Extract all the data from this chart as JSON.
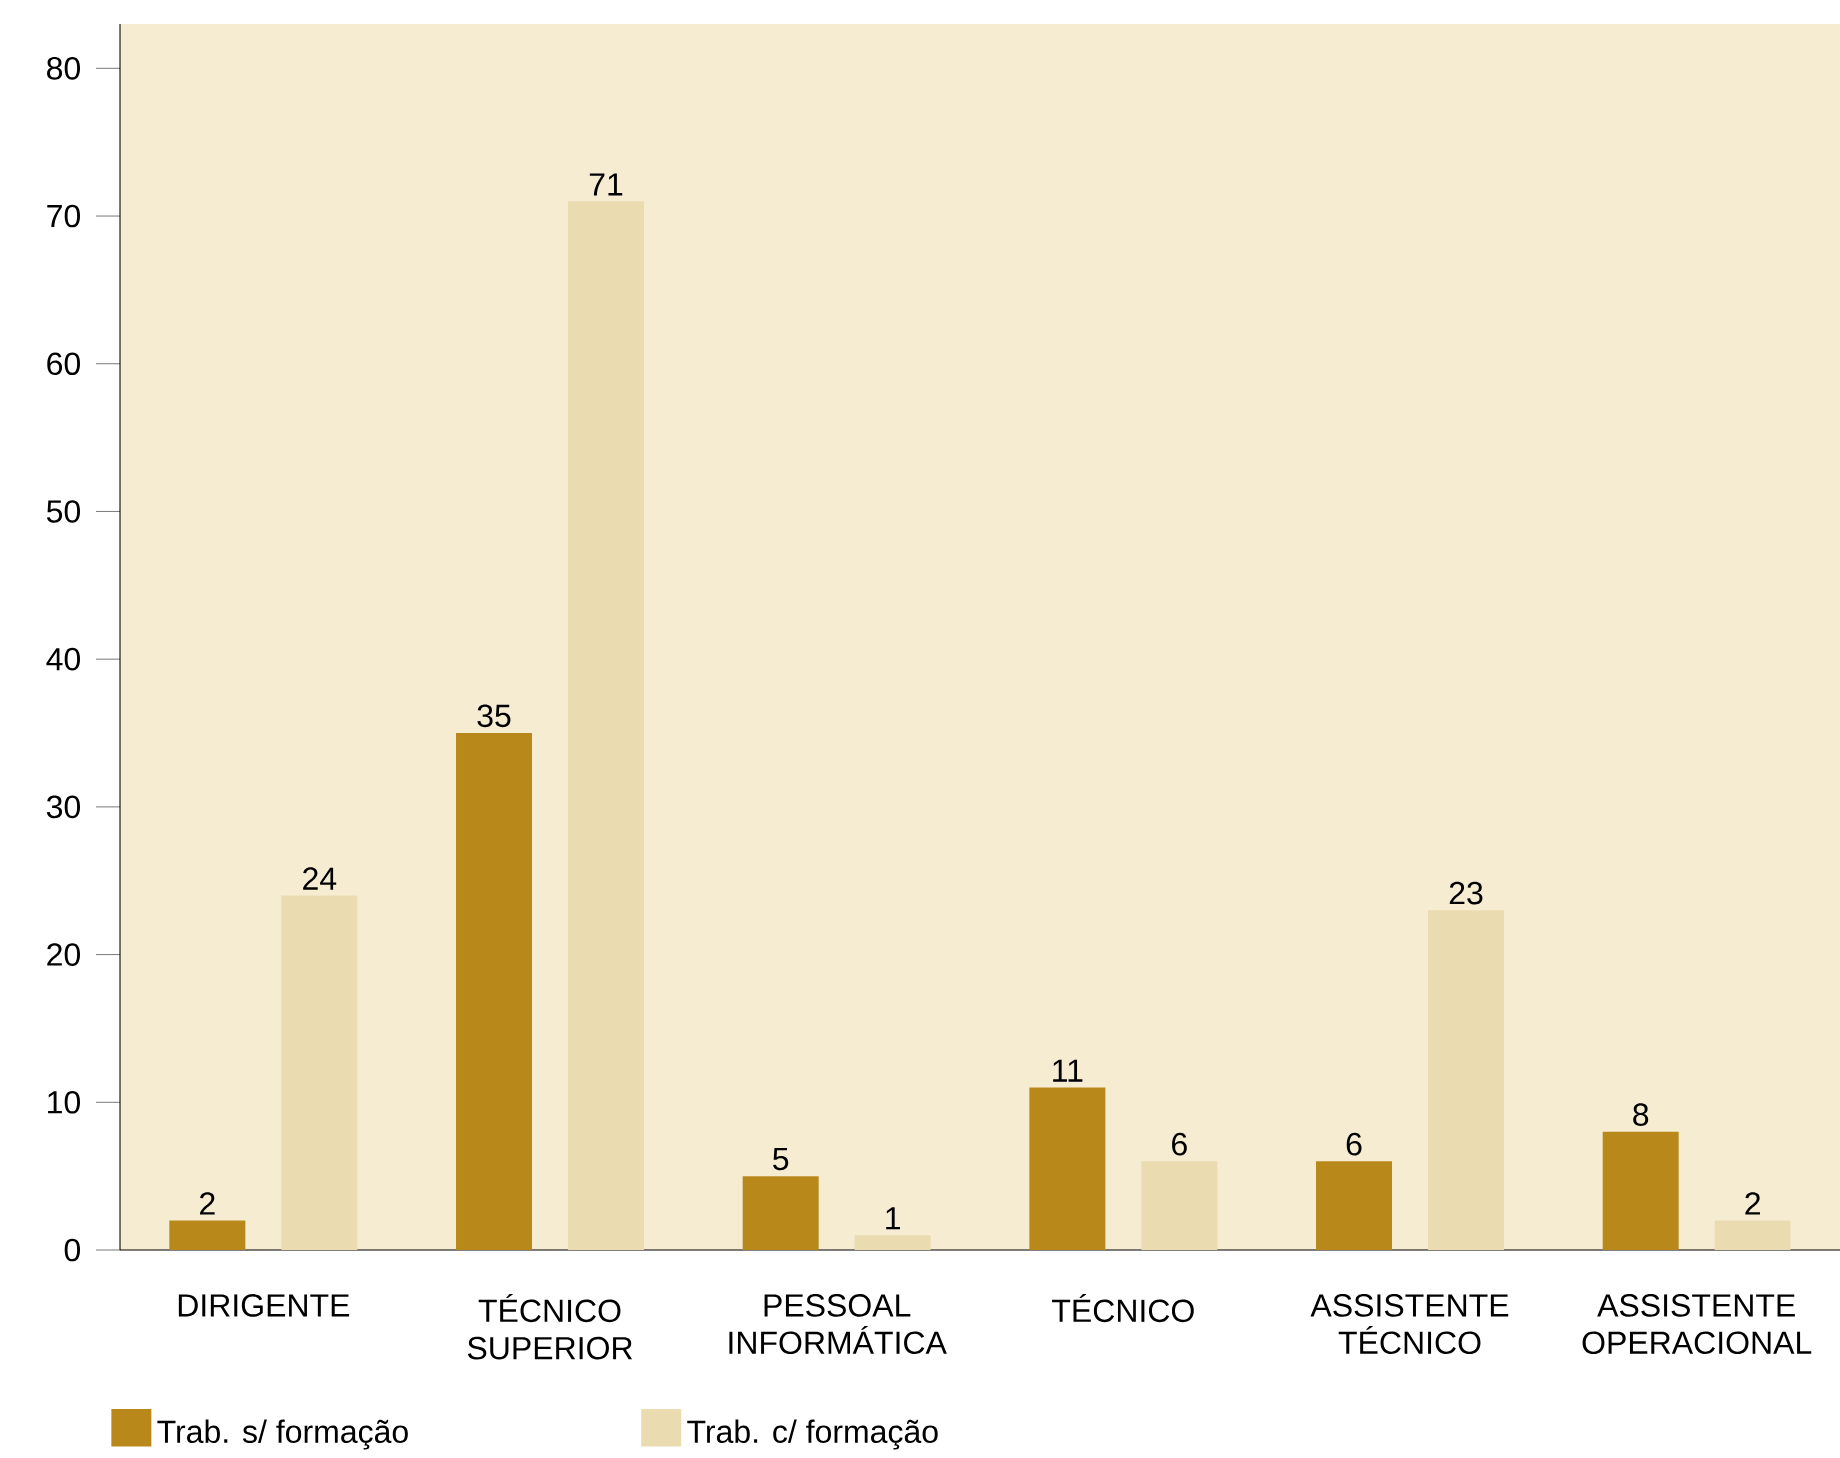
{
  "chart_data": {
    "type": "bar",
    "categories": [
      "DIRIGENTE",
      "TÉCNICO SUPERIOR",
      "PESSOAL INFORMÁTICA",
      "TÉCNICO",
      "ASSISTENTE TÉCNICO",
      "ASSISTENTE OPERACIONAL"
    ],
    "series": [
      {
        "name": "Trab. s/ formação",
        "color": "#b8891a",
        "values": [
          2,
          35,
          5,
          11,
          6,
          8
        ]
      },
      {
        "name": "Trab. c/ formação",
        "color": "#eadbb0",
        "values": [
          24,
          71,
          1,
          6,
          23,
          2
        ]
      }
    ],
    "ylim": [
      0,
      83
    ],
    "yticks": [
      0,
      10,
      20,
      30,
      40,
      50,
      60,
      70,
      80
    ],
    "data_labels": true,
    "legend": "bottom left",
    "grid": false
  }
}
